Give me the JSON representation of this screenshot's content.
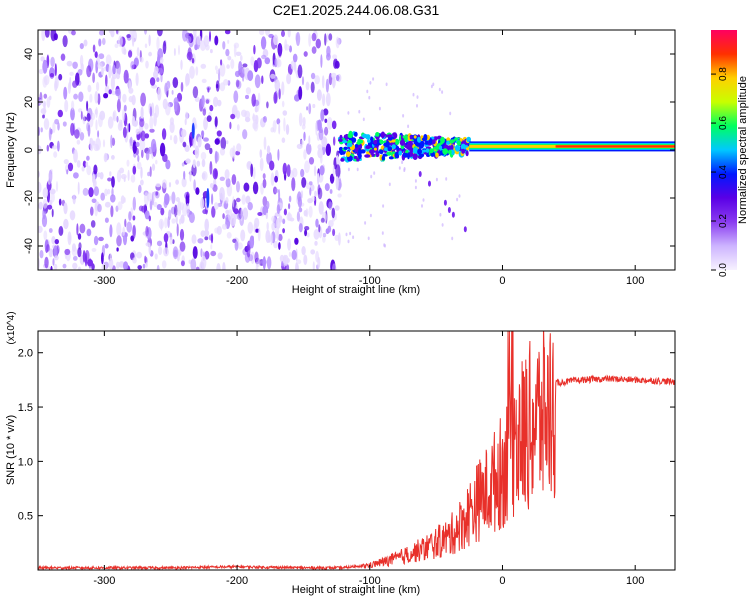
{
  "title": "C2E1.2025.244.06.08.G31",
  "chart_data": [
    {
      "type": "heatmap",
      "xlabel": "Height of straight line (km)",
      "ylabel": "Frequency (Hz)",
      "xlim": [
        -350,
        130
      ],
      "ylim": [
        -50,
        50
      ],
      "xticks": [
        -300,
        -200,
        -100,
        0,
        100
      ],
      "yticks": [
        -40,
        -20,
        0,
        20,
        40
      ],
      "colorbar": {
        "label": "Normalized spectral amplitude",
        "range": [
          0,
          1
        ],
        "ticks": [
          "0.0",
          "0.2",
          "0.4",
          "0.6",
          "0.8"
        ],
        "stops": [
          "#f7f2ff",
          "#cdb4ff",
          "#8a3cf0",
          "#5a00e6",
          "#0018ff",
          "#00c8ff",
          "#00ff60",
          "#c8ff00",
          "#ffd000",
          "#ff3000",
          "#ff0060"
        ]
      },
      "features": [
        {
          "name": "noise region",
          "x": [
            -350,
            -122
          ],
          "y": [
            -50,
            50
          ],
          "amplitude": 0.12
        },
        {
          "name": "signal track",
          "x": [
            -122,
            130
          ],
          "y_center": 1.5,
          "amplitude": 0.9
        }
      ]
    },
    {
      "type": "line",
      "xlabel": "Height of straight line (km)",
      "ylabel": "SNR (10 * v/v)",
      "yscale_note": "(x10^4)",
      "xlim": [
        -350,
        130
      ],
      "ylim": [
        0,
        2.2
      ],
      "xticks": [
        -300,
        -200,
        -100,
        0,
        100
      ],
      "yticks": [
        "0.5",
        "1.0",
        "1.5",
        "2.0"
      ],
      "series_color": "#e8302a",
      "x": [
        -350,
        -300,
        -250,
        -200,
        -150,
        -120,
        -100,
        -80,
        -60,
        -40,
        -30,
        -20,
        -10,
        0,
        5,
        10,
        20,
        30,
        40,
        60,
        80,
        100,
        120,
        130
      ],
      "y": [
        0.02,
        0.02,
        0.02,
        0.03,
        0.02,
        0.02,
        0.05,
        0.12,
        0.22,
        0.35,
        0.5,
        0.7,
        0.85,
        1.05,
        1.25,
        1.35,
        1.5,
        1.62,
        1.72,
        1.75,
        1.76,
        1.75,
        1.74,
        1.73
      ]
    }
  ]
}
